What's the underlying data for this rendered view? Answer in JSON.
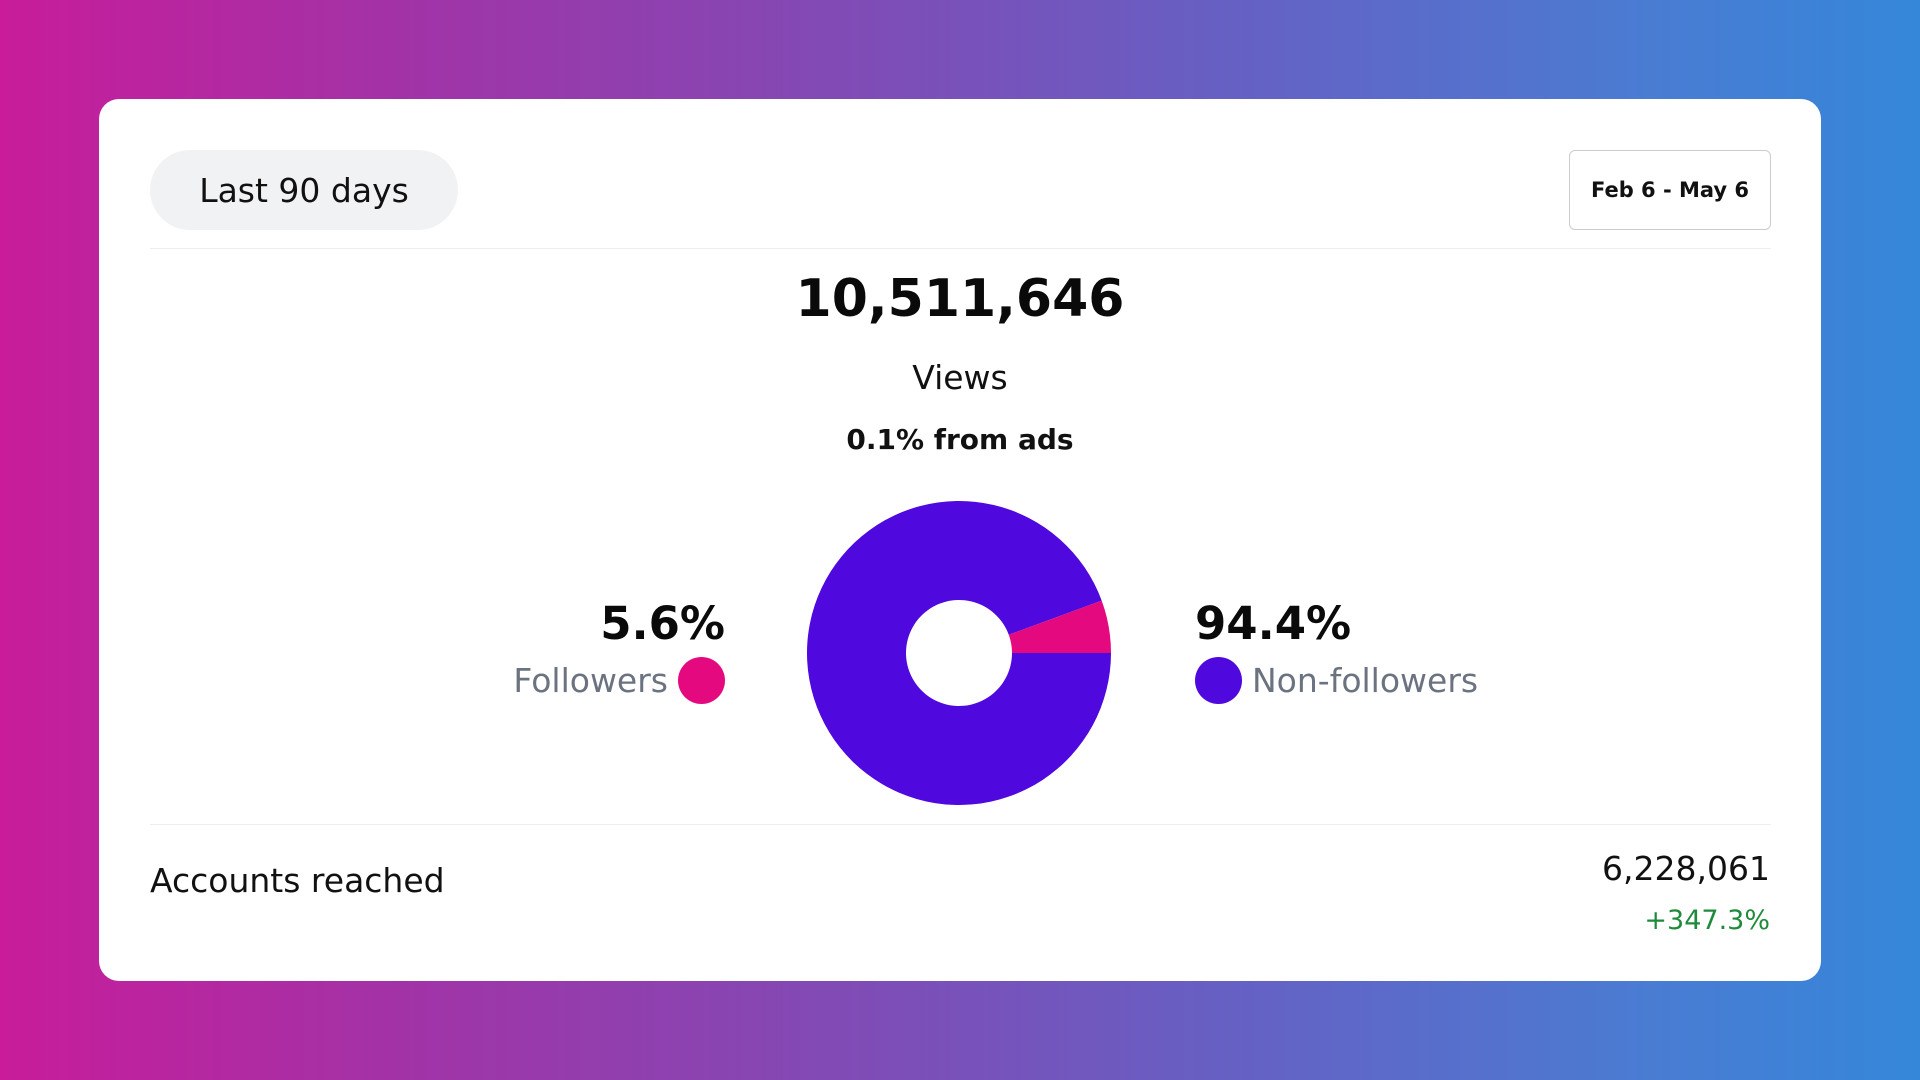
{
  "toolbar": {
    "range_label": "Last 90 days",
    "date_range": "Feb 6 - May 6"
  },
  "summary": {
    "total_views": "10,511,646",
    "views_label": "Views",
    "ads_note": "0.1% from ads"
  },
  "breakdown": {
    "followers": {
      "percent": "5.6%",
      "label": "Followers",
      "color": "#e5097f"
    },
    "non_followers": {
      "percent": "94.4%",
      "label": "Non-followers",
      "color": "#4f08de"
    }
  },
  "chart_data": {
    "type": "pie",
    "categories": [
      "Followers",
      "Non-followers"
    ],
    "values": [
      5.6,
      94.4
    ],
    "colors": [
      "#e5097f",
      "#4f08de"
    ]
  },
  "reach": {
    "label": "Accounts reached",
    "value": "6,228,061",
    "change": "+347.3%",
    "change_color": "#1f8a3c"
  }
}
